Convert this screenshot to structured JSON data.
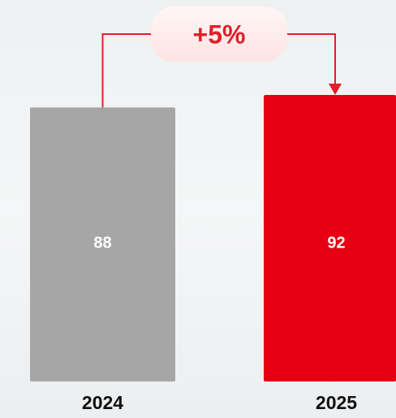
{
  "chart_data": {
    "type": "bar",
    "categories": [
      "2024",
      "2025"
    ],
    "series": [
      {
        "name": null,
        "values": [
          88,
          92
        ],
        "colors": [
          "#a6a6a6",
          "#e60012"
        ]
      }
    ],
    "annotation": "+5%",
    "annotation_color": "#e0202a"
  }
}
